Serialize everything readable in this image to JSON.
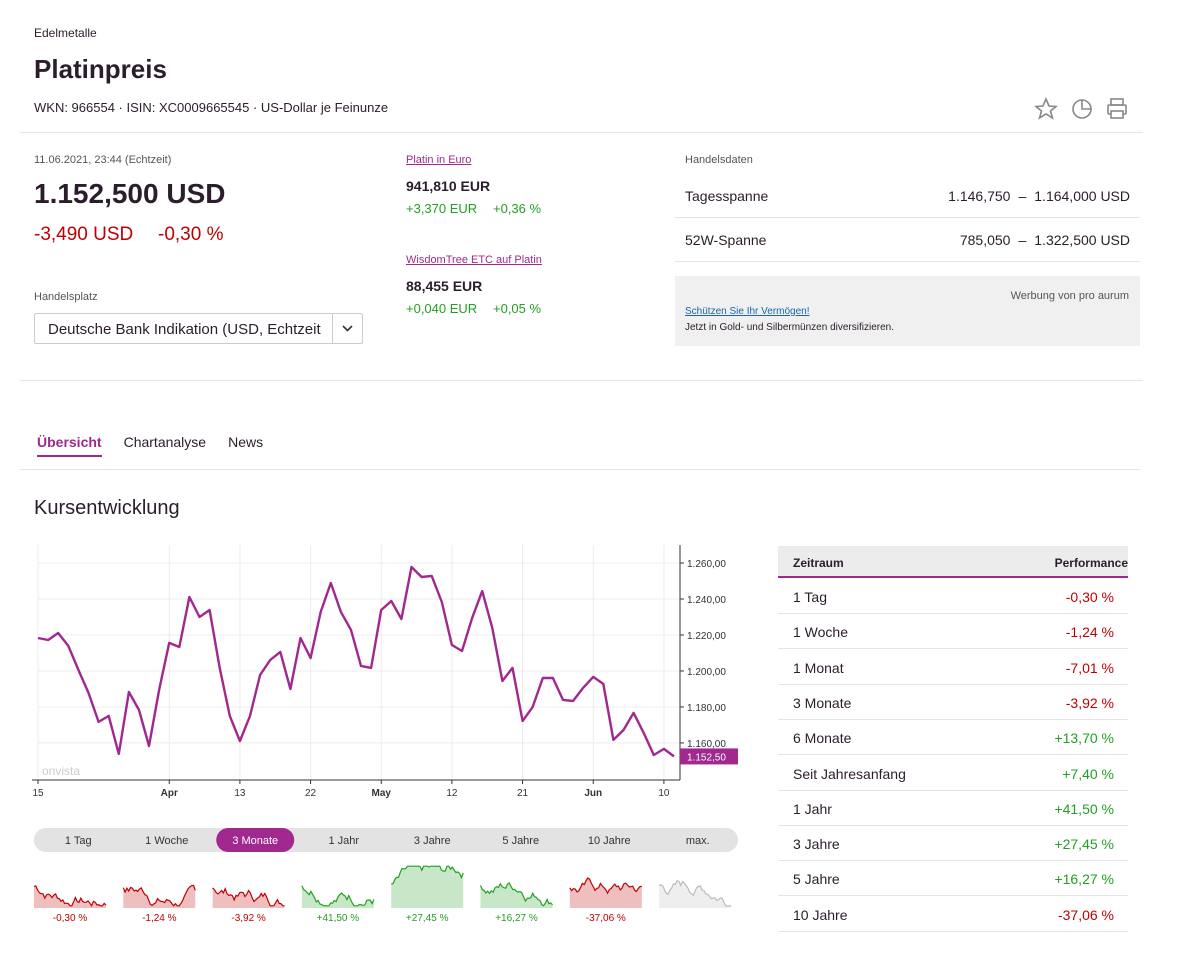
{
  "header": {
    "category": "Edelmetalle",
    "title": "Platinpreis",
    "meta": "WKN: 966554 · ISIN: XC0009665545 · US-Dollar je Feinunze"
  },
  "quote": {
    "timestamp": "11.06.2021, 23:44 (Echtzeit)",
    "price": "1.152,500 USD",
    "change": "-3,490 USD",
    "change_pct": "-0,30 %",
    "venue_label": "Handelsplatz",
    "venue": "Deutsche Bank Indikation (USD, Echtzeit)"
  },
  "related": [
    {
      "link": "Platin in Euro",
      "price": "941,810 EUR",
      "change": "+3,370 EUR",
      "change_pct": "+0,36 %"
    },
    {
      "link": "WisdomTree ETC auf Platin",
      "price": "88,455 EUR",
      "change": "+0,040 EUR",
      "change_pct": "+0,05 %"
    }
  ],
  "trading_data": {
    "title": "Handelsdaten",
    "separator": "–",
    "rows": [
      {
        "label": "Tagesspanne",
        "low": "1.146,750",
        "high": "1.164,000 USD"
      },
      {
        "label": "52W-Spanne",
        "low": "785,050",
        "high": "1.322,500 USD"
      }
    ]
  },
  "ad": {
    "label": "Werbung von pro aurum",
    "link": "Schützen Sie Ihr Vermögen!",
    "text": "Jetzt in Gold- und Silbermünzen diversifizieren."
  },
  "tabs": {
    "items": [
      "Übersicht",
      "Chartanalyse",
      "News"
    ],
    "active": 0
  },
  "section_title": "Kursentwicklung",
  "chart_data": {
    "type": "line",
    "color": "#a0288f",
    "grid": true,
    "watermark": "onvista",
    "last_label": "1.152,50",
    "categories": [
      "15",
      null,
      null,
      null,
      null,
      null,
      null,
      null,
      null,
      null,
      null,
      null,
      null,
      "Apr",
      null,
      null,
      null,
      null,
      null,
      null,
      "13",
      null,
      null,
      null,
      null,
      null,
      null,
      "22",
      null,
      null,
      null,
      null,
      null,
      null,
      "May",
      null,
      null,
      null,
      null,
      null,
      null,
      "12",
      null,
      null,
      null,
      null,
      null,
      null,
      "21",
      null,
      null,
      null,
      null,
      null,
      null,
      "Jun",
      null,
      null,
      null,
      null,
      null,
      null,
      "10",
      null
    ],
    "values": [
      1218.3,
      1217.2,
      1221.1,
      1213.9,
      1200.6,
      1187.8,
      1171.7,
      1175.0,
      1153.9,
      1188.3,
      1178.3,
      1158.3,
      1189.4,
      1215.6,
      1213.3,
      1241.1,
      1230.0,
      1233.9,
      1201.7,
      1175.0,
      1161.1,
      1175.0,
      1197.8,
      1206.1,
      1210.6,
      1190.0,
      1218.3,
      1207.2,
      1232.8,
      1248.9,
      1232.8,
      1222.8,
      1202.8,
      1201.7,
      1233.9,
      1238.9,
      1228.9,
      1257.8,
      1252.2,
      1252.8,
      1238.3,
      1214.4,
      1211.1,
      1229.4,
      1244.4,
      1223.9,
      1194.4,
      1201.7,
      1172.2,
      1180.0,
      1196.1,
      1196.1,
      1183.9,
      1183.3,
      1190.6,
      1196.7,
      1192.8,
      1161.7,
      1167.2,
      1176.7,
      1165.6,
      1153.3,
      1156.7,
      1152.5
    ],
    "ylim": [
      1139.4,
      1270
    ],
    "yticks": [
      {
        "value": 1160,
        "label": "1.160,00"
      },
      {
        "value": 1180,
        "label": "1.180,00"
      },
      {
        "value": 1200,
        "label": "1.200,00"
      },
      {
        "value": 1220,
        "label": "1.220,00"
      },
      {
        "value": 1240,
        "label": "1.240,00"
      },
      {
        "value": 1260,
        "label": "1.260,00"
      }
    ]
  },
  "ranges": {
    "active": 2,
    "items": [
      {
        "label": "1 Tag",
        "performance": "-0,30 %",
        "color": "#c00000"
      },
      {
        "label": "1 Woche",
        "performance": "-1,24 %",
        "color": "#c00000"
      },
      {
        "label": "3 Monate",
        "performance": "-3,92 %",
        "color": "#c00000"
      },
      {
        "label": "1 Jahr",
        "performance": "+41,50 %",
        "color": "#22a022"
      },
      {
        "label": "3 Jahre",
        "performance": "+27,45 %",
        "color": "#22a022"
      },
      {
        "label": "5 Jahre",
        "performance": "+16,27 %",
        "color": "#22a022"
      },
      {
        "label": "10 Jahre",
        "performance": "-37,06 %",
        "color": "#c00000"
      },
      {
        "label": "max.",
        "color": "#bbbbbb"
      }
    ]
  },
  "performance_table": {
    "columns": [
      "Zeitraum",
      "Performance"
    ],
    "rows": [
      [
        "1 Tag",
        "-0,30 %"
      ],
      [
        "1 Woche",
        "-1,24 %"
      ],
      [
        "1 Monat",
        "-7,01 %"
      ],
      [
        "3 Monate",
        "-3,92 %"
      ],
      [
        "6 Monate",
        "+13,70 %"
      ],
      [
        "Seit Jahresanfang",
        "+7,40 %"
      ],
      [
        "1 Jahr",
        "+41,50 %"
      ],
      [
        "3 Jahre",
        "+27,45 %"
      ],
      [
        "5 Jahre",
        "+16,27 %"
      ],
      [
        "10 Jahre",
        "-37,06 %"
      ]
    ]
  }
}
